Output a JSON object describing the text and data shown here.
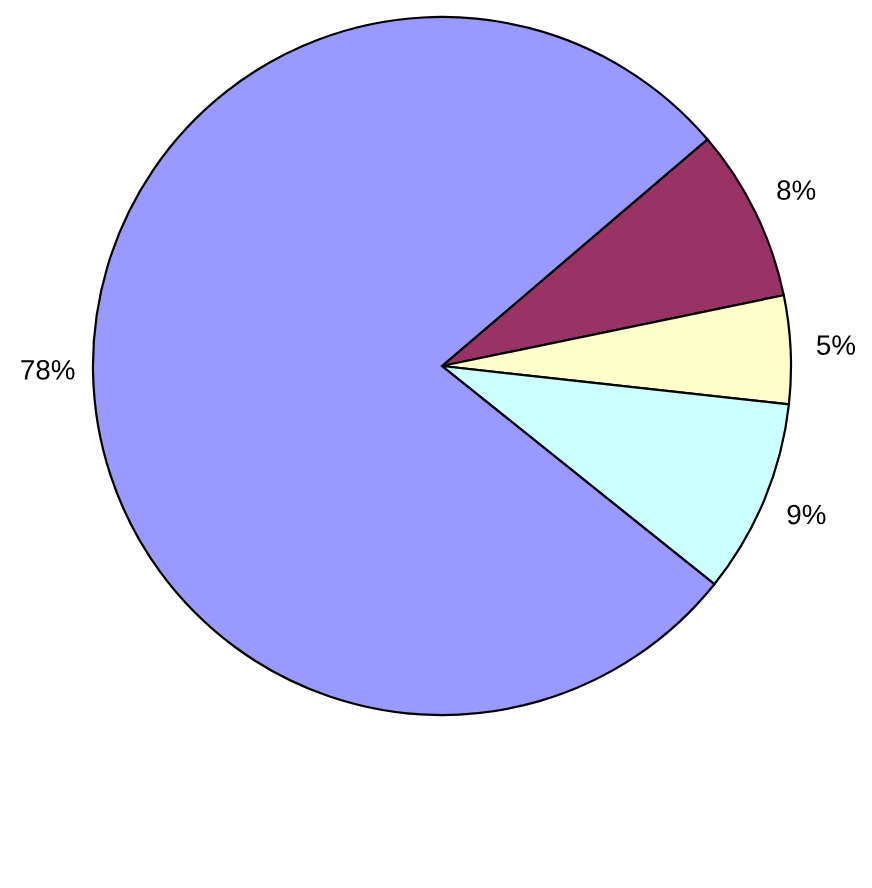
{
  "chart_data": {
    "type": "pie",
    "categories": [
      null,
      null,
      null,
      null
    ],
    "values": [
      8,
      5,
      9,
      78
    ],
    "value_labels": [
      "8%",
      "5%",
      "9%",
      "78%"
    ],
    "colors": [
      "#993366",
      "#ffffcc",
      "#ccffff",
      "#9999ff"
    ]
  }
}
